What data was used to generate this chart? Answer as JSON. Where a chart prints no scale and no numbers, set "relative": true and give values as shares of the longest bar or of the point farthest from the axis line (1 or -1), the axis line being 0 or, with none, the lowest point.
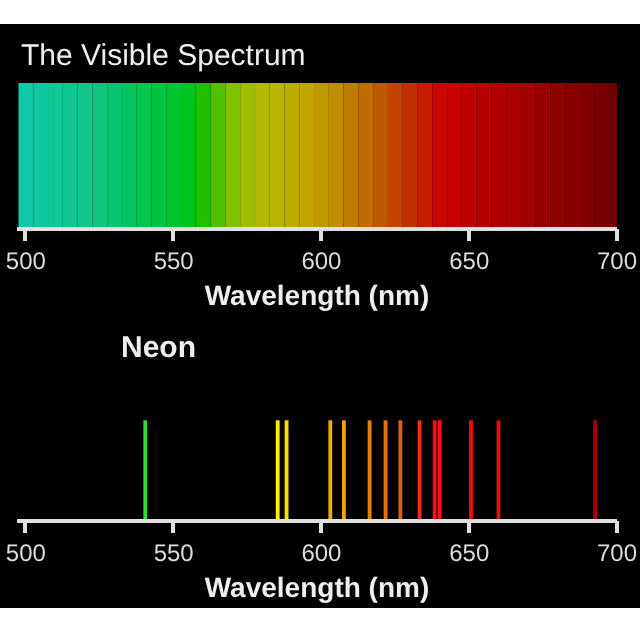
{
  "chart_data": [
    {
      "type": "bar",
      "title": "The Visible Spectrum",
      "xlabel": "Wavelength (nm)",
      "relative": true,
      "x": [
        500,
        505,
        510,
        515,
        520,
        525,
        530,
        535,
        540,
        545,
        550,
        555,
        560,
        565,
        570,
        575,
        580,
        585,
        590,
        595,
        600,
        605,
        610,
        615,
        620,
        625,
        630,
        635,
        640,
        645,
        650,
        655,
        660,
        665,
        670,
        675,
        680,
        685,
        690,
        695,
        700
      ],
      "values": [
        1,
        1,
        1,
        1,
        1,
        1,
        1,
        1,
        1,
        1,
        1,
        1,
        1,
        1,
        1,
        1,
        1,
        1,
        1,
        1,
        1,
        1,
        1,
        1,
        1,
        1,
        1,
        1,
        1,
        1,
        1,
        1,
        1,
        1,
        1,
        1,
        1,
        1,
        1,
        1,
        1
      ],
      "colors": [
        "#10c8a8",
        "#10c8a0",
        "#10c898",
        "#10c690",
        "#10c688",
        "#10c480",
        "#08c470",
        "#08c460",
        "#04c450",
        "#00c440",
        "#00c430",
        "#00c220",
        "#20c000",
        "#50c000",
        "#80c000",
        "#a0bc00",
        "#b0b800",
        "#b8b400",
        "#bcac00",
        "#c0a400",
        "#c09800",
        "#c08c00",
        "#c07c00",
        "#c06c00",
        "#c05800",
        "#c04400",
        "#c03000",
        "#c81c00",
        "#c80800",
        "#c80000",
        "#c00000",
        "#b80000",
        "#b00000",
        "#a80000",
        "#a00000",
        "#980000",
        "#900000",
        "#880000",
        "#800000",
        "#780000",
        "#700000"
      ],
      "xlim": [
        497,
        700
      ],
      "xticks": [
        500,
        550,
        600,
        650,
        700
      ]
    },
    {
      "type": "bar",
      "title": "Neon",
      "xlabel": "Wavelength (nm)",
      "relative": true,
      "x": [
        540.4,
        585.2,
        588.2,
        603.0,
        607.6,
        616.3,
        621.7,
        626.7,
        633.2,
        638.3,
        640.0,
        650.6,
        659.9,
        692.6
      ],
      "values": [
        1,
        1,
        1,
        1,
        1,
        1,
        1,
        1,
        1,
        1,
        1,
        1,
        1,
        1
      ],
      "colors": [
        "#33dd33",
        "#ffee00",
        "#ffdd00",
        "#e8b000",
        "#f0a800",
        "#e88000",
        "#f07000",
        "#e06010",
        "#f03010",
        "#ff1010",
        "#ff1010",
        "#ee1010",
        "#dd1010",
        "#aa0000"
      ],
      "xlim": [
        497,
        700
      ],
      "xticks": [
        500,
        550,
        600,
        650,
        700
      ]
    }
  ]
}
